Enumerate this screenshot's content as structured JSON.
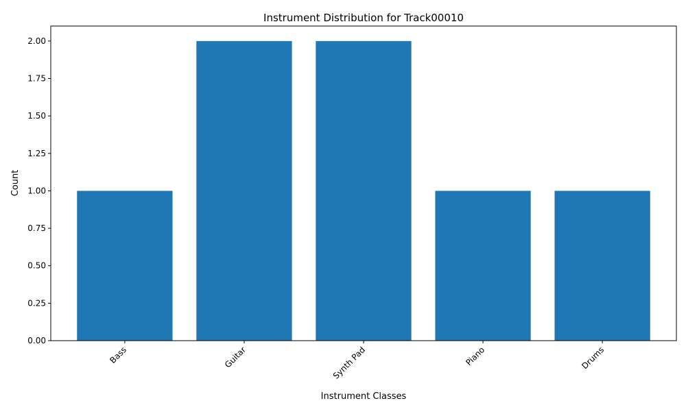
{
  "chart_data": {
    "type": "bar",
    "title": "Instrument Distribution for Track00010",
    "xlabel": "Instrument Classes",
    "ylabel": "Count",
    "categories": [
      "Bass",
      "Guitar",
      "Synth Pad",
      "Piano",
      "Drums"
    ],
    "values": [
      1,
      2,
      2,
      1,
      1
    ],
    "ylim": [
      0,
      2.1
    ],
    "yticks": [
      "0.00",
      "0.25",
      "0.50",
      "0.75",
      "1.00",
      "1.25",
      "1.50",
      "1.75",
      "2.00"
    ],
    "grid": false,
    "legend": "none",
    "bar_color": "#1f77b4"
  }
}
